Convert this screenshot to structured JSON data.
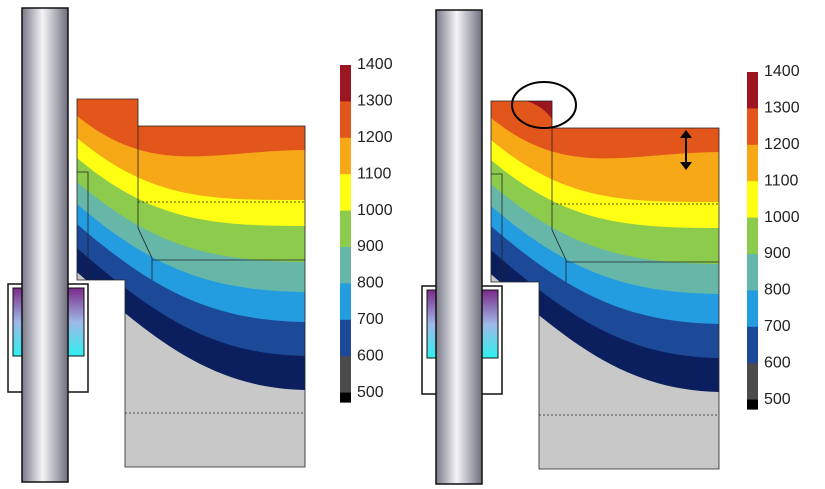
{
  "panels": [
    {
      "colorbar": {
        "labels": [
          1400,
          1300,
          1200,
          1100,
          1000,
          900,
          800,
          700,
          600,
          500
        ]
      }
    },
    {
      "colorbar": {
        "labels": [
          1400,
          1300,
          1200,
          1100,
          1000,
          900,
          800,
          700,
          600,
          500
        ]
      }
    }
  ]
}
